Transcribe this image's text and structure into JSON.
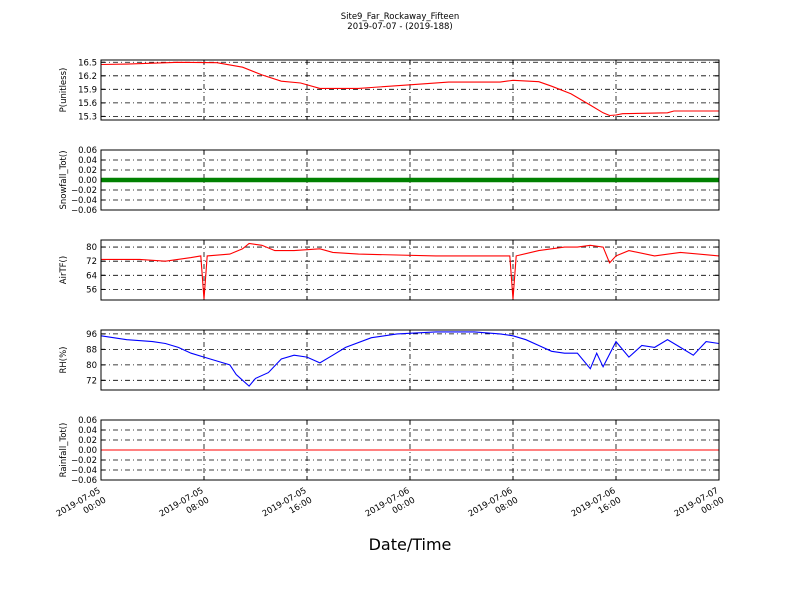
{
  "chart_data": {
    "type": "line",
    "title": "Site9_Far_Rockaway_Fifteen",
    "subtitle": "2019-07-07 - (2019-188)",
    "xlabel": "Date/Time",
    "xlim": [
      "2019-07-05 00:00",
      "2019-07-07 00:00"
    ],
    "x_ticks": [
      {
        "l1": "2019-07-05",
        "l2": "00:00",
        "t": "2019-07-05 00:00"
      },
      {
        "l1": "2019-07-05",
        "l2": "08:00",
        "t": "2019-07-05 08:00"
      },
      {
        "l1": "2019-07-05",
        "l2": "16:00",
        "t": "2019-07-05 16:00"
      },
      {
        "l1": "2019-07-06",
        "l2": "00:00",
        "t": "2019-07-06 00:00"
      },
      {
        "l1": "2019-07-06",
        "l2": "08:00",
        "t": "2019-07-06 08:00"
      },
      {
        "l1": "2019-07-06",
        "l2": "16:00",
        "t": "2019-07-06 16:00"
      },
      {
        "l1": "2019-07-07",
        "l2": "00:00",
        "t": "2019-07-07 00:00"
      }
    ],
    "grid": true,
    "panels": [
      {
        "ylabel": "P(unitless)",
        "ylim": [
          15.22,
          16.55
        ],
        "yticks": [
          "16.5",
          "16.2",
          "15.9",
          "15.6",
          "15.3"
        ],
        "style": "line",
        "series": [
          {
            "color": "#ff0000",
            "points": [
              [
                "2019-07-05 00:00",
                16.45
              ],
              [
                "2019-07-05 02:00",
                16.46
              ],
              [
                "2019-07-05 06:00",
                16.5
              ],
              [
                "2019-07-05 09:00",
                16.49
              ],
              [
                "2019-07-05 11:00",
                16.39
              ],
              [
                "2019-07-05 12:30",
                16.22
              ],
              [
                "2019-07-05 14:00",
                16.08
              ],
              [
                "2019-07-05 15:30",
                16.04
              ],
              [
                "2019-07-05 17:00",
                15.92
              ],
              [
                "2019-07-05 20:00",
                15.92
              ],
              [
                "2019-07-05 21:00",
                15.94
              ],
              [
                "2019-07-06 00:00",
                16.0
              ],
              [
                "2019-07-06 03:00",
                16.06
              ],
              [
                "2019-07-06 07:00",
                16.06
              ],
              [
                "2019-07-06 08:00",
                16.1
              ],
              [
                "2019-07-06 10:00",
                16.07
              ],
              [
                "2019-07-06 11:00",
                15.97
              ],
              [
                "2019-07-06 12:30",
                15.8
              ],
              [
                "2019-07-06 14:00",
                15.55
              ],
              [
                "2019-07-06 15:00",
                15.38
              ],
              [
                "2019-07-06 15:30",
                15.32
              ],
              [
                "2019-07-06 16:00",
                15.33
              ],
              [
                "2019-07-06 16:30",
                15.36
              ],
              [
                "2019-07-06 20:00",
                15.38
              ],
              [
                "2019-07-06 20:30",
                15.42
              ],
              [
                "2019-07-07 00:00",
                15.42
              ]
            ]
          }
        ]
      },
      {
        "ylabel": "Snowfall_Tot()",
        "ylim": [
          -0.06,
          0.06
        ],
        "yticks": [
          "0.06",
          "0.04",
          "0.02",
          "0.00",
          "−0.02",
          "−0.04",
          "−0.06"
        ],
        "style": "markers",
        "series": [
          {
            "color": "#008000",
            "points": [
              [
                "2019-07-05 00:00",
                0.0
              ],
              [
                "2019-07-07 00:00",
                0.0
              ]
            ]
          }
        ]
      },
      {
        "ylabel": "AirTF()",
        "ylim": [
          50,
          84
        ],
        "yticks": [
          "80",
          "72",
          "64",
          "56"
        ],
        "style": "line",
        "series": [
          {
            "color": "#ff0000",
            "points": [
              [
                "2019-07-05 00:00",
                73
              ],
              [
                "2019-07-05 03:00",
                73
              ],
              [
                "2019-07-05 05:00",
                72
              ],
              [
                "2019-07-05 07:00",
                74
              ],
              [
                "2019-07-05 07:45",
                75
              ],
              [
                "2019-07-05 08:00",
                50.5
              ],
              [
                "2019-07-05 08:15",
                75
              ],
              [
                "2019-07-05 10:00",
                76
              ],
              [
                "2019-07-05 11:00",
                79
              ],
              [
                "2019-07-05 11:30",
                82
              ],
              [
                "2019-07-05 12:30",
                81
              ],
              [
                "2019-07-05 13:30",
                78
              ],
              [
                "2019-07-05 15:00",
                78
              ],
              [
                "2019-07-05 17:00",
                79
              ],
              [
                "2019-07-05 18:00",
                77
              ],
              [
                "2019-07-05 20:00",
                76
              ],
              [
                "2019-07-06 02:00",
                75
              ],
              [
                "2019-07-06 06:00",
                75
              ],
              [
                "2019-07-06 07:45",
                75
              ],
              [
                "2019-07-06 08:00",
                50.5
              ],
              [
                "2019-07-06 08:15",
                75
              ],
              [
                "2019-07-06 10:00",
                78
              ],
              [
                "2019-07-06 12:00",
                80
              ],
              [
                "2019-07-06 13:00",
                80
              ],
              [
                "2019-07-06 14:00",
                81
              ],
              [
                "2019-07-06 15:00",
                80
              ],
              [
                "2019-07-06 15:30",
                71
              ],
              [
                "2019-07-06 16:00",
                75
              ],
              [
                "2019-07-06 17:00",
                78
              ],
              [
                "2019-07-06 19:00",
                75
              ],
              [
                "2019-07-06 21:00",
                77
              ],
              [
                "2019-07-07 00:00",
                75
              ]
            ]
          }
        ]
      },
      {
        "ylabel": "RH(%)",
        "ylim": [
          67,
          98
        ],
        "yticks": [
          "96",
          "88",
          "80",
          "72"
        ],
        "style": "line",
        "series": [
          {
            "color": "#0000ff",
            "points": [
              [
                "2019-07-05 00:00",
                95
              ],
              [
                "2019-07-05 02:00",
                93
              ],
              [
                "2019-07-05 04:00",
                92
              ],
              [
                "2019-07-05 05:00",
                91
              ],
              [
                "2019-07-05 06:00",
                89
              ],
              [
                "2019-07-05 07:00",
                86
              ],
              [
                "2019-07-05 08:00",
                84
              ],
              [
                "2019-07-05 09:00",
                82
              ],
              [
                "2019-07-05 10:00",
                80
              ],
              [
                "2019-07-05 10:30",
                75
              ],
              [
                "2019-07-05 11:00",
                72
              ],
              [
                "2019-07-05 11:30",
                69
              ],
              [
                "2019-07-05 12:00",
                73
              ],
              [
                "2019-07-05 13:00",
                76
              ],
              [
                "2019-07-05 14:00",
                83
              ],
              [
                "2019-07-05 15:00",
                85
              ],
              [
                "2019-07-05 16:00",
                84
              ],
              [
                "2019-07-05 17:00",
                81
              ],
              [
                "2019-07-05 18:00",
                85
              ],
              [
                "2019-07-05 19:00",
                89
              ],
              [
                "2019-07-05 21:00",
                94
              ],
              [
                "2019-07-05 23:00",
                96
              ],
              [
                "2019-07-06 02:00",
                97
              ],
              [
                "2019-07-06 05:00",
                97
              ],
              [
                "2019-07-06 07:00",
                96
              ],
              [
                "2019-07-06 08:00",
                95
              ],
              [
                "2019-07-06 09:00",
                93
              ],
              [
                "2019-07-06 10:00",
                90
              ],
              [
                "2019-07-06 11:00",
                87
              ],
              [
                "2019-07-06 12:00",
                86
              ],
              [
                "2019-07-06 13:00",
                86
              ],
              [
                "2019-07-06 14:00",
                78
              ],
              [
                "2019-07-06 14:30",
                86
              ],
              [
                "2019-07-06 15:00",
                79
              ],
              [
                "2019-07-06 16:00",
                92
              ],
              [
                "2019-07-06 17:00",
                84
              ],
              [
                "2019-07-06 18:00",
                90
              ],
              [
                "2019-07-06 19:00",
                89
              ],
              [
                "2019-07-06 20:00",
                93
              ],
              [
                "2019-07-06 21:00",
                89
              ],
              [
                "2019-07-06 22:00",
                85
              ],
              [
                "2019-07-06 23:00",
                92
              ],
              [
                "2019-07-07 00:00",
                91
              ]
            ]
          }
        ]
      },
      {
        "ylabel": "Rainfall_Tot()",
        "ylim": [
          -0.06,
          0.06
        ],
        "yticks": [
          "0.06",
          "0.04",
          "0.02",
          "0.00",
          "−0.02",
          "−0.04",
          "−0.06"
        ],
        "style": "line",
        "series": [
          {
            "color": "#ff0000",
            "points": [
              [
                "2019-07-05 00:00",
                0.0
              ],
              [
                "2019-07-07 00:00",
                0.0
              ]
            ]
          }
        ]
      }
    ]
  }
}
